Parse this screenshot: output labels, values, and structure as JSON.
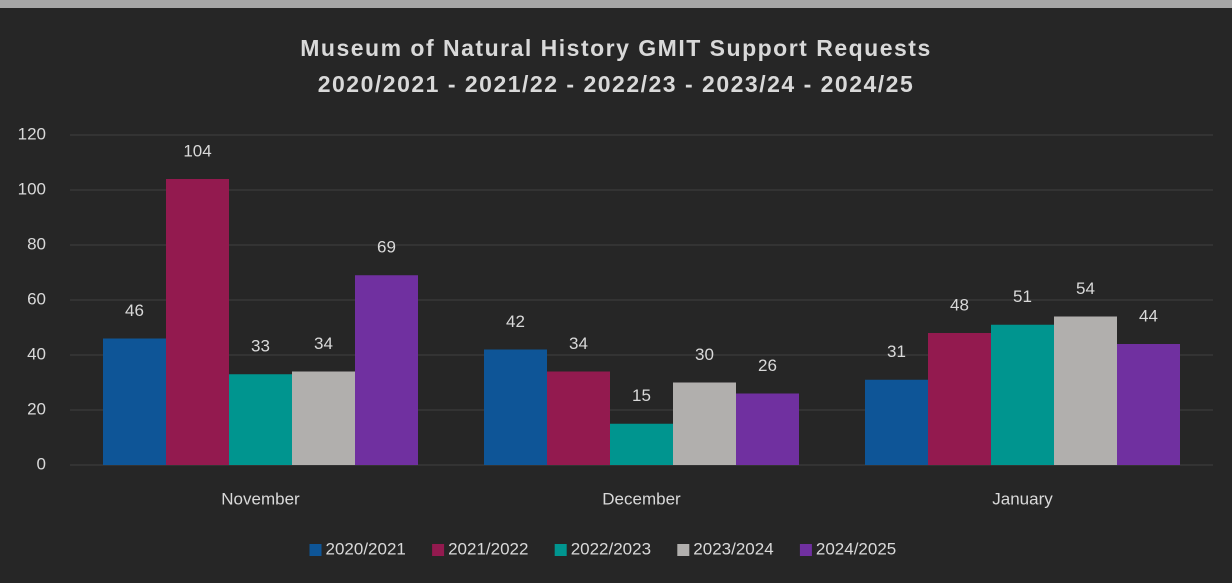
{
  "chart_data": {
    "type": "bar",
    "title": "Museum of Natural History GMIT Support Requests",
    "subtitle": "2020/2021 - 2021/22 - 2022/23 - 2023/24 - 2024/25",
    "categories": [
      "November",
      "December",
      "January"
    ],
    "series": [
      {
        "name": "2020/2021",
        "color": "#0e5597",
        "values": [
          46,
          42,
          31
        ]
      },
      {
        "name": "2021/2022",
        "color": "#931a4f",
        "values": [
          104,
          34,
          48
        ]
      },
      {
        "name": "2022/2023",
        "color": "#00958f",
        "values": [
          33,
          15,
          51
        ]
      },
      {
        "name": "2023/2024",
        "color": "#b1afad",
        "values": [
          34,
          30,
          54
        ]
      },
      {
        "name": "2024/2025",
        "color": "#7030a0",
        "values": [
          69,
          26,
          44
        ]
      }
    ],
    "ylim": [
      0,
      120
    ],
    "yticks": [
      0,
      20,
      40,
      60,
      80,
      100,
      120
    ],
    "grid": true,
    "legend": "bottom"
  }
}
